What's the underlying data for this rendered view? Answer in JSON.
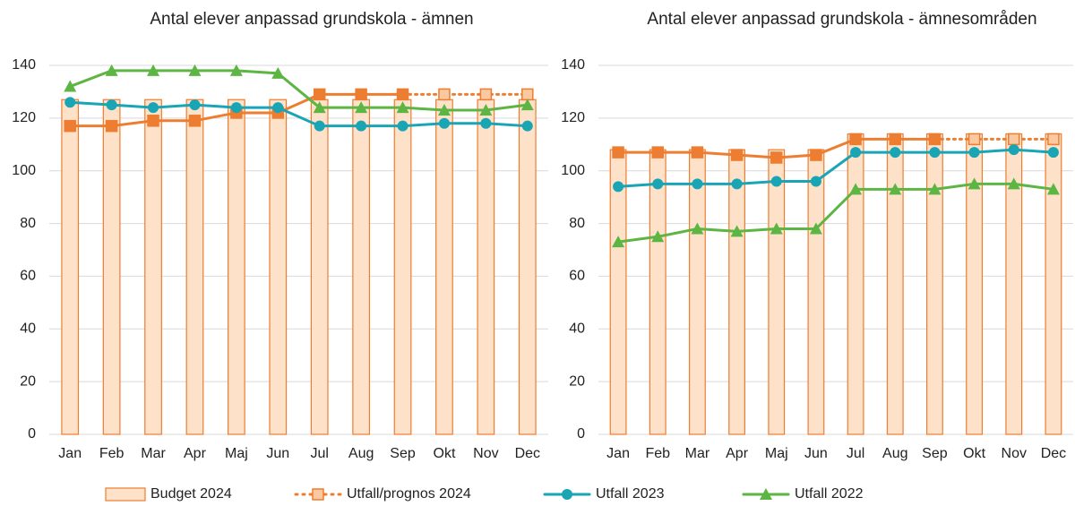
{
  "chart_data": [
    {
      "type": "combo",
      "title": "Antal elever anpassad grundskola - ämnen",
      "categories": [
        "Jan",
        "Feb",
        "Mar",
        "Apr",
        "Maj",
        "Jun",
        "Jul",
        "Aug",
        "Sep",
        "Okt",
        "Nov",
        "Dec"
      ],
      "ylim": [
        0,
        140
      ],
      "yticks": [
        0,
        20,
        40,
        60,
        80,
        100,
        120,
        140
      ],
      "series": [
        {
          "name": "Budget 2024",
          "kind": "bar",
          "color": "#ed7d31",
          "values": [
            127,
            127,
            127,
            127,
            127,
            127,
            127,
            127,
            127,
            127,
            127,
            127
          ]
        },
        {
          "name": "Utfall/prognos 2024",
          "kind": "line",
          "marker": "square",
          "color": "#ed7d31",
          "values": [
            117,
            117,
            119,
            119,
            122,
            122,
            129,
            129,
            129,
            129,
            129,
            129
          ]
        },
        {
          "name": "Utfall 2023",
          "kind": "line",
          "marker": "circle",
          "color": "#1aa5b5",
          "values": [
            126,
            125,
            124,
            125,
            124,
            124,
            117,
            117,
            117,
            118,
            118,
            117
          ]
        },
        {
          "name": "Utfall 2022",
          "kind": "line",
          "marker": "triangle",
          "color": "#5db543",
          "values": [
            132,
            138,
            138,
            138,
            138,
            137,
            124,
            124,
            124,
            123,
            123,
            125
          ]
        }
      ]
    },
    {
      "type": "combo",
      "title": "Antal elever anpassad grundskola - ämnesområden",
      "categories": [
        "Jan",
        "Feb",
        "Mar",
        "Apr",
        "Maj",
        "Jun",
        "Jul",
        "Aug",
        "Sep",
        "Okt",
        "Nov",
        "Dec"
      ],
      "ylim": [
        0,
        140
      ],
      "yticks": [
        0,
        20,
        40,
        60,
        80,
        100,
        120,
        140
      ],
      "series": [
        {
          "name": "Budget 2024",
          "kind": "bar",
          "color": "#ed7d31",
          "values": [
            108,
            108,
            108,
            108,
            108,
            108,
            114,
            114,
            114,
            114,
            114,
            114
          ]
        },
        {
          "name": "Utfall/prognos 2024",
          "kind": "line",
          "marker": "square",
          "color": "#ed7d31",
          "values": [
            107,
            107,
            107,
            106,
            105,
            106,
            112,
            112,
            112,
            112,
            112,
            112
          ]
        },
        {
          "name": "Utfall 2023",
          "kind": "line",
          "marker": "circle",
          "color": "#1aa5b5",
          "values": [
            94,
            95,
            95,
            95,
            96,
            96,
            107,
            107,
            107,
            107,
            108,
            107
          ]
        },
        {
          "name": "Utfall 2022",
          "kind": "line",
          "marker": "triangle",
          "color": "#5db543",
          "values": [
            73,
            75,
            78,
            77,
            78,
            78,
            93,
            93,
            93,
            95,
            95,
            93
          ]
        }
      ]
    }
  ]
}
